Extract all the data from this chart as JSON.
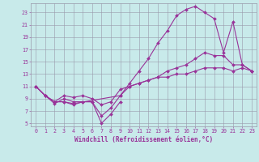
{
  "background_color": "#c8eaea",
  "line_color": "#993399",
  "grid_color": "#9999aa",
  "xlabel": "Windchill (Refroidissement éolien,°C)",
  "ylim": [
    4.5,
    24.5
  ],
  "xlim": [
    -0.5,
    23.5
  ],
  "yticks": [
    5,
    7,
    9,
    11,
    13,
    15,
    17,
    19,
    21,
    23
  ],
  "xticks": [
    0,
    1,
    2,
    3,
    4,
    5,
    6,
    7,
    8,
    9,
    10,
    11,
    12,
    13,
    14,
    15,
    16,
    17,
    18,
    19,
    20,
    21,
    22,
    23
  ],
  "lines": [
    {
      "x": [
        0,
        1,
        2,
        3,
        4,
        5,
        6,
        7,
        8,
        9
      ],
      "y": [
        11,
        9.5,
        8.5,
        8.5,
        8.0,
        8.5,
        8.5,
        5.0,
        6.5,
        8.5
      ]
    },
    {
      "x": [
        0,
        1,
        2,
        3,
        4,
        9,
        10,
        11,
        12,
        13,
        14,
        15,
        16,
        17,
        18,
        19,
        20,
        21,
        22,
        23
      ],
      "y": [
        11,
        9.5,
        8.5,
        8.5,
        8.2,
        9.5,
        11.5,
        13.5,
        15.5,
        18.0,
        20.0,
        22.5,
        23.5,
        24.0,
        23.0,
        22.0,
        16.5,
        21.5,
        14.5,
        13.5
      ]
    },
    {
      "x": [
        0,
        1,
        2,
        3,
        4,
        5,
        6,
        7,
        8,
        9,
        10,
        11,
        12,
        13,
        14,
        15,
        16,
        17,
        18,
        19,
        20,
        21,
        22,
        23
      ],
      "y": [
        11,
        9.5,
        8.2,
        9.0,
        8.5,
        8.5,
        8.5,
        6.2,
        7.5,
        9.5,
        11.0,
        11.5,
        12.0,
        12.5,
        13.5,
        14.0,
        14.5,
        15.5,
        16.5,
        16.0,
        16.0,
        14.5,
        14.5,
        13.5
      ]
    },
    {
      "x": [
        0,
        1,
        2,
        3,
        4,
        5,
        6,
        7,
        8,
        9,
        10,
        11,
        12,
        13,
        14,
        15,
        16,
        17,
        18,
        19,
        20,
        21,
        22,
        23
      ],
      "y": [
        11,
        9.5,
        8.5,
        9.5,
        9.2,
        9.5,
        9.0,
        8.0,
        8.5,
        10.5,
        11.0,
        11.5,
        12.0,
        12.5,
        12.5,
        13.0,
        13.0,
        13.5,
        14.0,
        14.0,
        14.0,
        13.5,
        14.0,
        13.5
      ]
    }
  ],
  "marker": "D",
  "markersize": 2.0,
  "linewidth": 0.8,
  "xlabel_fontsize": 5.5,
  "tick_fontsize": 4.8
}
